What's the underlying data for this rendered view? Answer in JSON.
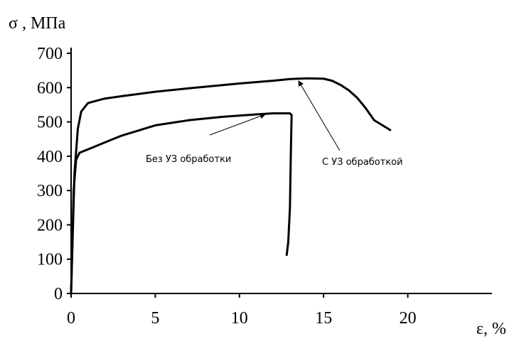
{
  "chart_data": {
    "type": "line",
    "y_label": "σ , МПа",
    "x_label": "ε, %",
    "annotations": [
      "Без УЗ обработки",
      "С УЗ обработкой"
    ],
    "xlim": [
      0,
      25
    ],
    "xticks": [
      0,
      5,
      10,
      15,
      20
    ],
    "ylim": [
      0,
      700
    ],
    "yticks": [
      0,
      100,
      200,
      300,
      400,
      500,
      600,
      700
    ],
    "series": [
      {
        "color": "#000000",
        "x": [
          0,
          0.2,
          0.4,
          0.6,
          1,
          2,
          3,
          5,
          7,
          10,
          12,
          13,
          14,
          15,
          15.5,
          16,
          16.5,
          17,
          17.5,
          18,
          18.5,
          19
        ],
        "values": [
          0,
          350,
          480,
          530,
          555,
          568,
          575,
          588,
          598,
          612,
          620,
          625,
          627,
          626,
          620,
          608,
          592,
          570,
          540,
          505,
          490,
          475
        ]
      },
      {
        "color": "#000000",
        "x": [
          0,
          0.15,
          0.3,
          0.5,
          1,
          2,
          3,
          5,
          7,
          9,
          11,
          12,
          13,
          13.1,
          13.05,
          13,
          12.9,
          12.8
        ],
        "values": [
          0,
          300,
          390,
          410,
          420,
          440,
          460,
          490,
          505,
          515,
          522,
          525,
          525,
          520,
          400,
          250,
          150,
          110
        ]
      }
    ]
  }
}
